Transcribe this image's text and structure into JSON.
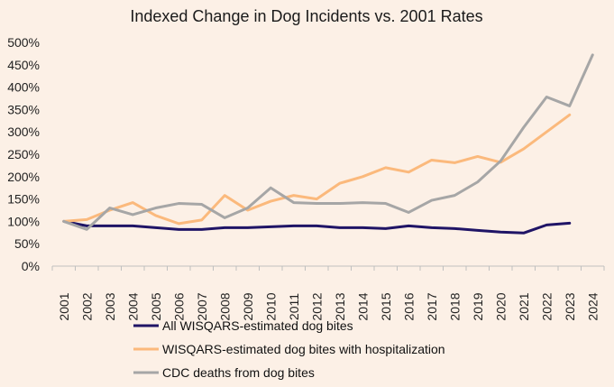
{
  "chart_data": {
    "type": "line",
    "title": "Indexed Change in Dog Incidents vs. 2001 Rates",
    "xlabel": "",
    "ylabel": "",
    "ylim": [
      0,
      500
    ],
    "yticks": [
      "0%",
      "50%",
      "100%",
      "150%",
      "200%",
      "250%",
      "300%",
      "350%",
      "400%",
      "450%",
      "500%"
    ],
    "grid": false,
    "legend_position": "bottom",
    "categories": [
      "2001",
      "2002",
      "2003",
      "2004",
      "2005",
      "2006",
      "2007",
      "2008",
      "2009",
      "2010",
      "2011",
      "2012",
      "2013",
      "2014",
      "2015",
      "2016",
      "2017",
      "2018",
      "2019",
      "2020",
      "2021",
      "2022",
      "2023",
      "2024"
    ],
    "series": [
      {
        "name": "All WISQARS-estimated dog bites",
        "color": "#1f1466",
        "values": [
          100,
          90,
          90,
          90,
          86,
          82,
          82,
          86,
          86,
          88,
          90,
          90,
          86,
          86,
          84,
          90,
          86,
          84,
          80,
          76,
          74,
          92,
          96,
          null
        ]
      },
      {
        "name": "WISQARS-estimated dog bites with hospitalization",
        "color": "#fbb97c",
        "values": [
          100,
          104,
          125,
          142,
          113,
          95,
          103,
          158,
          125,
          145,
          158,
          150,
          185,
          200,
          220,
          210,
          237,
          231,
          245,
          232,
          262,
          300,
          338,
          null
        ]
      },
      {
        "name": "CDC deaths from dog bites",
        "color": "#a6a6a6",
        "values": [
          100,
          82,
          130,
          115,
          130,
          140,
          138,
          108,
          130,
          175,
          142,
          140,
          140,
          142,
          140,
          120,
          147,
          158,
          188,
          235,
          310,
          378,
          358,
          472
        ]
      }
    ]
  }
}
